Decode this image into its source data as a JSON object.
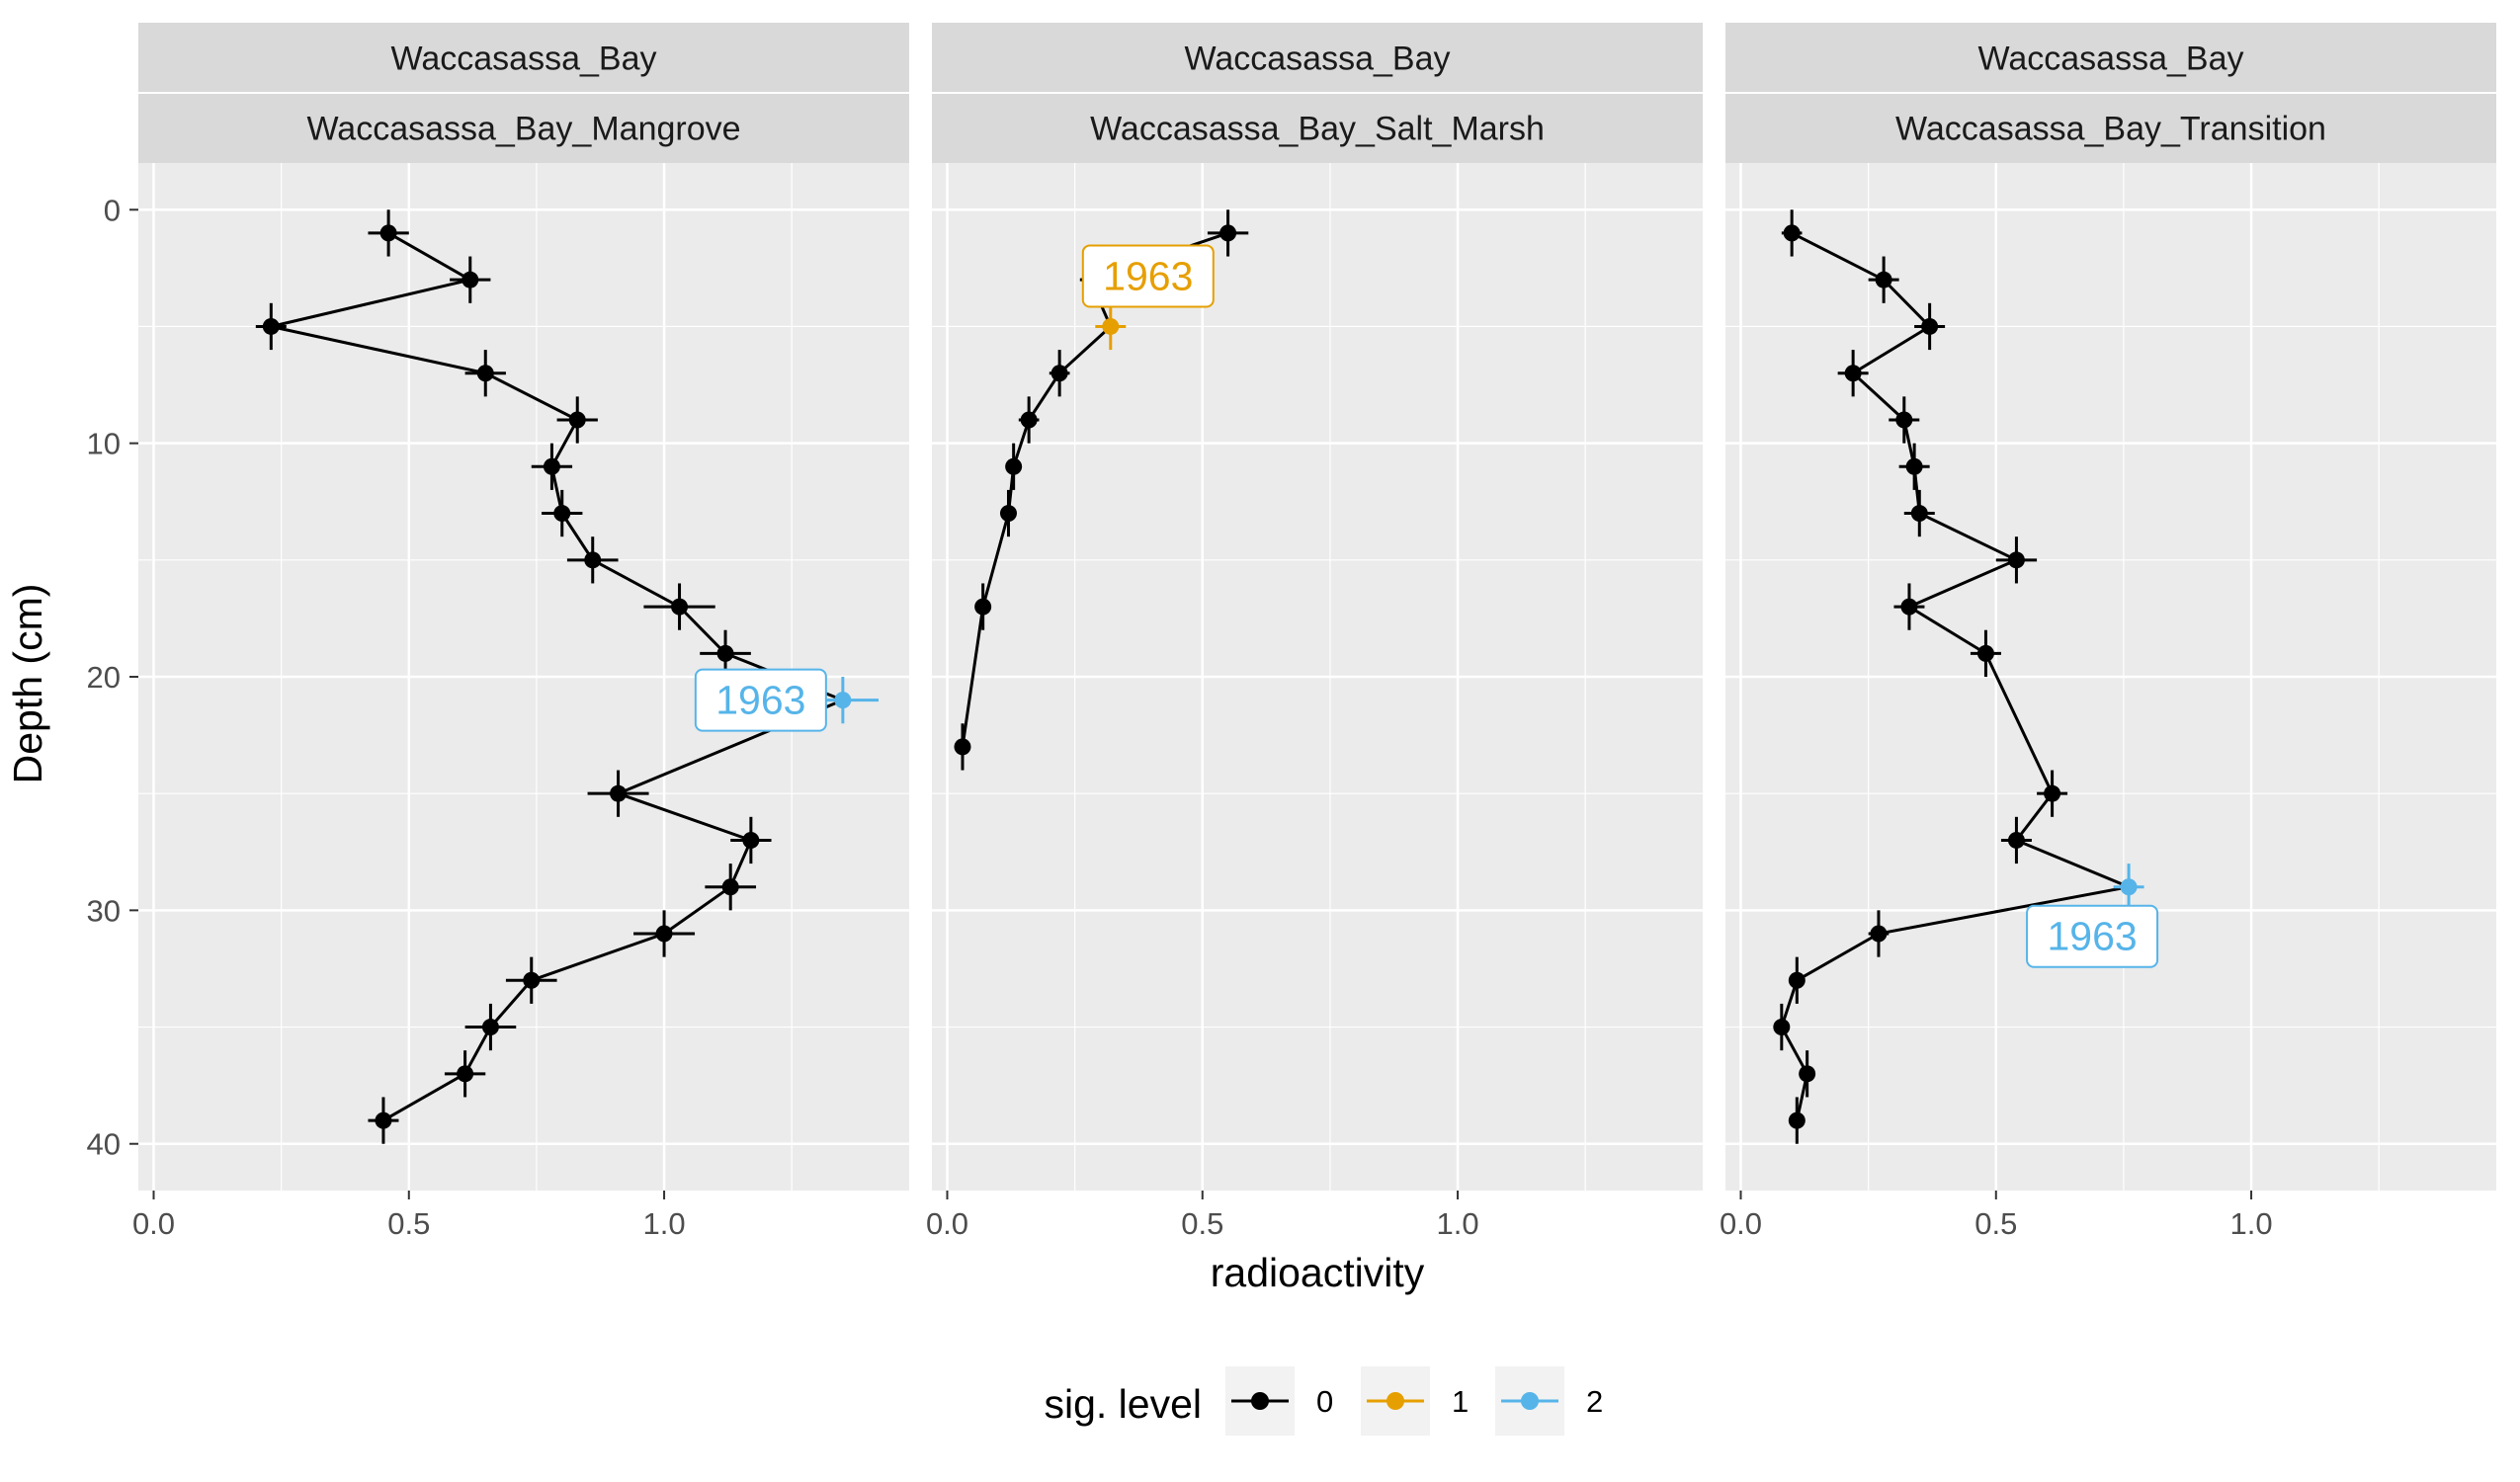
{
  "chart_data": {
    "type": "scatter",
    "xlabel": "radioactivity",
    "ylabel": "Depth (cm)",
    "xlim": [
      -0.03,
      1.48
    ],
    "ylim": [
      -2,
      42
    ],
    "x_ticks": [
      0.0,
      0.5,
      1.0
    ],
    "x_tick_labels": [
      "0.0",
      "0.5",
      "1.0"
    ],
    "y_ticks": [
      0,
      10,
      20,
      30,
      40
    ],
    "y_tick_labels": [
      "0",
      "10",
      "20",
      "30",
      "40"
    ],
    "grid": true,
    "legend": {
      "title": "sig. level",
      "position": "bottom",
      "entries": [
        {
          "label": "0",
          "color": "#000000"
        },
        {
          "label": "1",
          "color": "#E69F00"
        },
        {
          "label": "2",
          "color": "#56B4E9"
        }
      ]
    },
    "panels": [
      {
        "site": "Waccasassa_Bay",
        "core": "Waccasassa_Bay_Mangrove",
        "points": [
          {
            "depth": 1,
            "x": 0.46,
            "xerr": 0.04,
            "yerr": 1,
            "sig": 0
          },
          {
            "depth": 3,
            "x": 0.62,
            "xerr": 0.04,
            "yerr": 1,
            "sig": 0
          },
          {
            "depth": 5,
            "x": 0.23,
            "xerr": 0.03,
            "yerr": 1,
            "sig": 0
          },
          {
            "depth": 7,
            "x": 0.65,
            "xerr": 0.04,
            "yerr": 1,
            "sig": 0
          },
          {
            "depth": 9,
            "x": 0.83,
            "xerr": 0.04,
            "yerr": 1,
            "sig": 0
          },
          {
            "depth": 11,
            "x": 0.78,
            "xerr": 0.04,
            "yerr": 1,
            "sig": 0
          },
          {
            "depth": 13,
            "x": 0.8,
            "xerr": 0.04,
            "yerr": 1,
            "sig": 0
          },
          {
            "depth": 15,
            "x": 0.86,
            "xerr": 0.05,
            "yerr": 1,
            "sig": 0
          },
          {
            "depth": 17,
            "x": 1.03,
            "xerr": 0.07,
            "yerr": 1,
            "sig": 0
          },
          {
            "depth": 19,
            "x": 1.12,
            "xerr": 0.05,
            "yerr": 1,
            "sig": 0
          },
          {
            "depth": 21,
            "x": 1.35,
            "xerr": 0.07,
            "yerr": 1,
            "sig": 2,
            "label": "1963"
          },
          {
            "depth": 25,
            "x": 0.91,
            "xerr": 0.06,
            "yerr": 1,
            "sig": 0
          },
          {
            "depth": 27,
            "x": 1.17,
            "xerr": 0.04,
            "yerr": 1,
            "sig": 0
          },
          {
            "depth": 29,
            "x": 1.13,
            "xerr": 0.05,
            "yerr": 1,
            "sig": 0
          },
          {
            "depth": 31,
            "x": 1.0,
            "xerr": 0.06,
            "yerr": 1,
            "sig": 0
          },
          {
            "depth": 33,
            "x": 0.74,
            "xerr": 0.05,
            "yerr": 1,
            "sig": 0
          },
          {
            "depth": 35,
            "x": 0.66,
            "xerr": 0.05,
            "yerr": 1,
            "sig": 0
          },
          {
            "depth": 37,
            "x": 0.61,
            "xerr": 0.04,
            "yerr": 1,
            "sig": 0
          },
          {
            "depth": 39,
            "x": 0.45,
            "xerr": 0.03,
            "yerr": 1,
            "sig": 0
          }
        ]
      },
      {
        "site": "Waccasassa_Bay",
        "core": "Waccasassa_Bay_Salt_Marsh",
        "points": [
          {
            "depth": 1,
            "x": 0.55,
            "xerr": 0.04,
            "yerr": 1,
            "sig": 0
          },
          {
            "depth": 3,
            "x": 0.28,
            "xerr": 0.02,
            "yerr": 1,
            "sig": 0
          },
          {
            "depth": 5,
            "x": 0.32,
            "xerr": 0.03,
            "yerr": 1,
            "sig": 1,
            "label": "1963"
          },
          {
            "depth": 7,
            "x": 0.22,
            "xerr": 0.02,
            "yerr": 1,
            "sig": 0
          },
          {
            "depth": 9,
            "x": 0.16,
            "xerr": 0.02,
            "yerr": 1,
            "sig": 0
          },
          {
            "depth": 11,
            "x": 0.13,
            "xerr": 0.01,
            "yerr": 1,
            "sig": 0
          },
          {
            "depth": 13,
            "x": 0.12,
            "xerr": 0.01,
            "yerr": 1,
            "sig": 0
          },
          {
            "depth": 17,
            "x": 0.07,
            "xerr": 0.01,
            "yerr": 1,
            "sig": 0
          },
          {
            "depth": 23,
            "x": 0.03,
            "xerr": 0.01,
            "yerr": 1,
            "sig": 0
          }
        ]
      },
      {
        "site": "Waccasassa_Bay",
        "core": "Waccasassa_Bay_Transition",
        "points": [
          {
            "depth": 1,
            "x": 0.1,
            "xerr": 0.02,
            "yerr": 1,
            "sig": 0
          },
          {
            "depth": 3,
            "x": 0.28,
            "xerr": 0.03,
            "yerr": 1,
            "sig": 0
          },
          {
            "depth": 5,
            "x": 0.37,
            "xerr": 0.03,
            "yerr": 1,
            "sig": 0
          },
          {
            "depth": 7,
            "x": 0.22,
            "xerr": 0.03,
            "yerr": 1,
            "sig": 0
          },
          {
            "depth": 9,
            "x": 0.32,
            "xerr": 0.03,
            "yerr": 1,
            "sig": 0
          },
          {
            "depth": 11,
            "x": 0.34,
            "xerr": 0.03,
            "yerr": 1,
            "sig": 0
          },
          {
            "depth": 13,
            "x": 0.35,
            "xerr": 0.03,
            "yerr": 1,
            "sig": 0
          },
          {
            "depth": 15,
            "x": 0.54,
            "xerr": 0.04,
            "yerr": 1,
            "sig": 0
          },
          {
            "depth": 17,
            "x": 0.33,
            "xerr": 0.03,
            "yerr": 1,
            "sig": 0
          },
          {
            "depth": 19,
            "x": 0.48,
            "xerr": 0.03,
            "yerr": 1,
            "sig": 0
          },
          {
            "depth": 25,
            "x": 0.61,
            "xerr": 0.03,
            "yerr": 1,
            "sig": 0
          },
          {
            "depth": 27,
            "x": 0.54,
            "xerr": 0.03,
            "yerr": 1,
            "sig": 0
          },
          {
            "depth": 29,
            "x": 0.76,
            "xerr": 0.03,
            "yerr": 1,
            "sig": 2,
            "label": "1963"
          },
          {
            "depth": 31,
            "x": 0.27,
            "xerr": 0.02,
            "yerr": 1,
            "sig": 0
          },
          {
            "depth": 33,
            "x": 0.11,
            "xerr": 0.01,
            "yerr": 1,
            "sig": 0
          },
          {
            "depth": 35,
            "x": 0.08,
            "xerr": 0.01,
            "yerr": 1,
            "sig": 0
          },
          {
            "depth": 37,
            "x": 0.13,
            "xerr": 0.01,
            "yerr": 1,
            "sig": 0
          },
          {
            "depth": 39,
            "x": 0.11,
            "xerr": 0.01,
            "yerr": 1,
            "sig": 0
          }
        ]
      }
    ]
  }
}
